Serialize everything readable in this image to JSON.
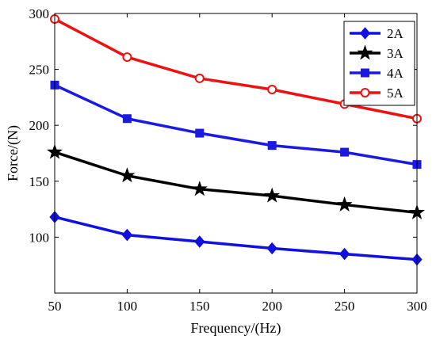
{
  "chart_data": {
    "type": "line",
    "xlabel": "Frequency/(Hz)",
    "ylabel": "Force/(N)",
    "xlim": [
      50,
      300
    ],
    "ylim": [
      50,
      300
    ],
    "x": [
      50,
      100,
      150,
      200,
      250,
      300
    ],
    "xticks": [
      "50",
      "100",
      "150",
      "200",
      "250",
      "300"
    ],
    "yticks": [
      "100",
      "150",
      "200",
      "250",
      "300"
    ],
    "grid": false,
    "legend_position": "top-right",
    "series": [
      {
        "name": "2A",
        "color": "#1010e0",
        "marker": "diamond",
        "values": [
          118,
          102,
          96,
          90,
          85,
          80
        ]
      },
      {
        "name": "3A",
        "color": "#000000",
        "marker": "star",
        "values": [
          176,
          155,
          143,
          137,
          129,
          122
        ]
      },
      {
        "name": "4A",
        "color": "#1a1ae0",
        "marker": "square",
        "values": [
          236,
          206,
          193,
          182,
          176,
          165
        ]
      },
      {
        "name": "5A",
        "color": "#ee1111",
        "marker": "circle",
        "values": [
          295,
          261,
          242,
          232,
          219,
          206
        ]
      }
    ]
  }
}
